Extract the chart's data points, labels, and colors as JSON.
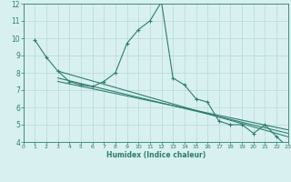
{
  "line1_x": [
    1,
    2,
    3,
    4,
    5,
    6,
    7,
    8,
    9,
    10,
    11,
    12,
    13,
    14,
    15,
    16,
    17,
    18,
    19,
    20,
    21,
    22,
    23
  ],
  "line1_y": [
    9.9,
    8.9,
    8.1,
    7.5,
    7.3,
    7.2,
    7.5,
    8.0,
    9.7,
    10.5,
    11.0,
    12.1,
    7.7,
    7.3,
    6.5,
    6.3,
    5.2,
    5.0,
    5.0,
    4.5,
    5.0,
    4.3,
    3.7
  ],
  "line2_x": [
    3,
    23
  ],
  "line2_y": [
    8.1,
    4.3
  ],
  "line3_x": [
    3,
    23
  ],
  "line3_y": [
    7.7,
    4.5
  ],
  "line4_x": [
    3,
    23
  ],
  "line4_y": [
    7.5,
    4.7
  ],
  "line_color": "#2e7d6e",
  "bg_color": "#d8f0f0",
  "grid_color": "#b8d8d8",
  "xlabel": "Humidex (Indice chaleur)",
  "xlim": [
    0,
    23
  ],
  "ylim": [
    4,
    12
  ],
  "xticks": [
    0,
    1,
    2,
    3,
    4,
    5,
    6,
    7,
    8,
    9,
    10,
    11,
    12,
    13,
    14,
    15,
    16,
    17,
    18,
    19,
    20,
    21,
    22,
    23
  ],
  "yticks": [
    4,
    5,
    6,
    7,
    8,
    9,
    10,
    11,
    12
  ],
  "marker": "+"
}
